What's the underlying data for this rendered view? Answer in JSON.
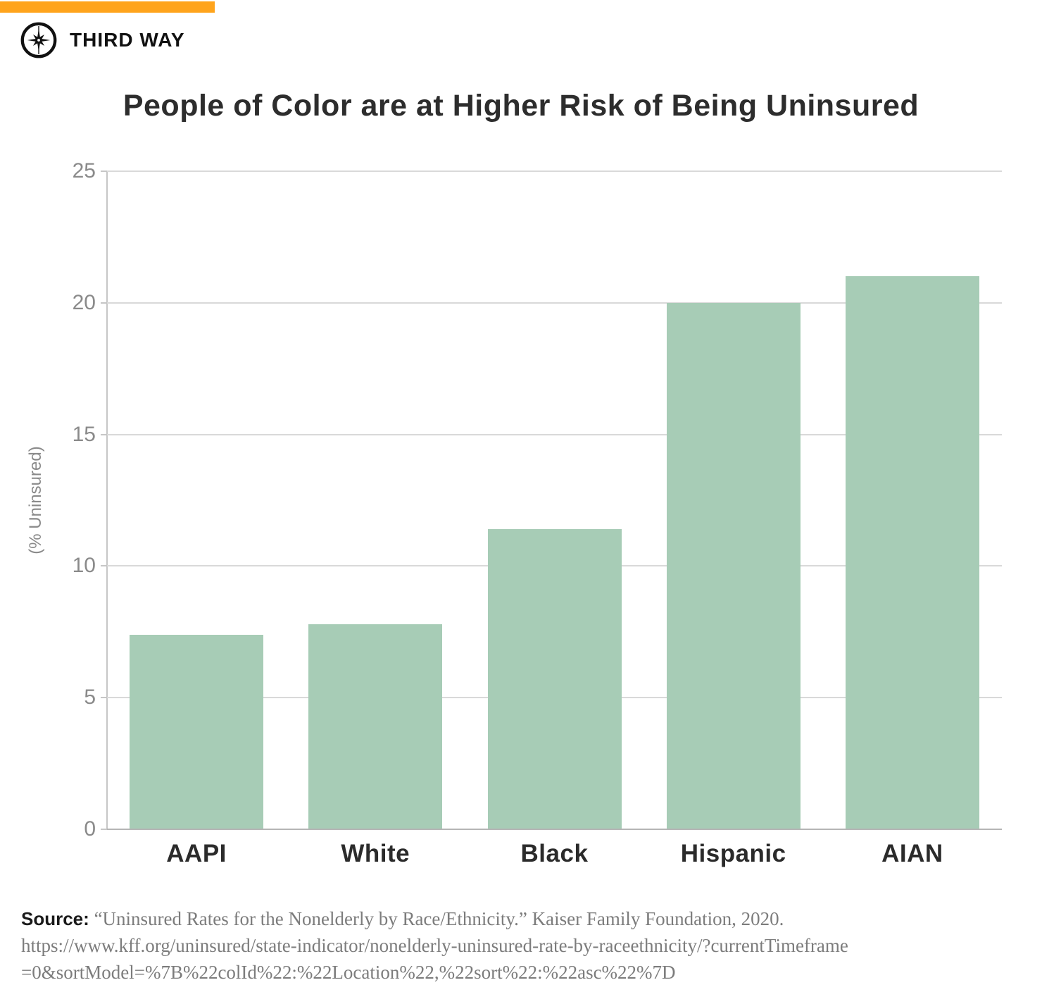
{
  "header": {
    "brand": "THIRD WAY",
    "accent_color": "#FFA41C"
  },
  "chart_data": {
    "type": "bar",
    "title": "People of Color are at Higher Risk of Being Uninsured",
    "categories": [
      "AAPI",
      "White",
      "Black",
      "Hispanic",
      "AIAN"
    ],
    "values": [
      7.4,
      7.8,
      11.4,
      20.0,
      21.0
    ],
    "xlabel": "",
    "ylabel": "(% Uninsured)",
    "ylim": [
      0,
      25
    ],
    "yticks": [
      0,
      5,
      10,
      15,
      20,
      25
    ],
    "bar_color": "#A7CCB6",
    "grid": true,
    "legend_position": "none"
  },
  "source": {
    "label": "Source:",
    "text": "“Uninsured Rates for the Nonelderly by Race/Ethnicity.” Kaiser Family Foundation, 2020.",
    "url_line1": "https://www.kff.org/uninsured/state-indicator/nonelderly-uninsured-rate-by-raceethnicity/?currentTimeframe",
    "url_line2": "=0&sortModel=%7B%22colId%22:%22Location%22,%22sort%22:%22asc%22%7D"
  }
}
